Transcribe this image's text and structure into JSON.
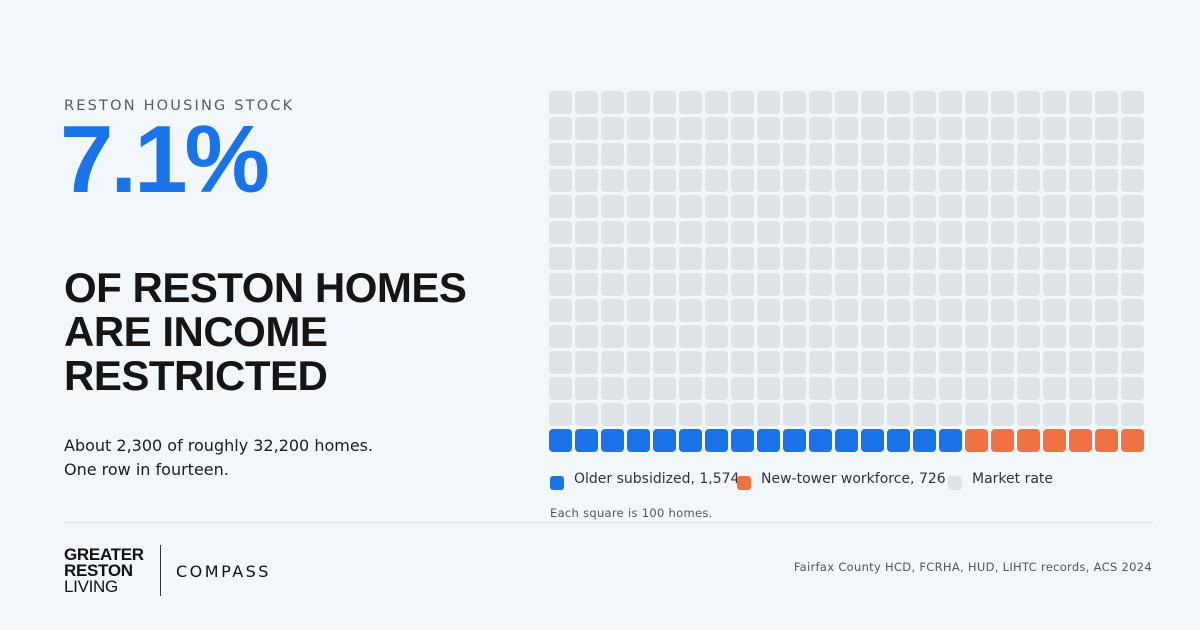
{
  "eyebrow": "RESTON HOUSING STOCK",
  "big_stat": "7.1%",
  "headline": [
    "OF RESTON HOMES",
    "ARE INCOME",
    "RESTRICTED"
  ],
  "subtext": [
    "About 2,300 of roughly 32,200 homes.",
    "One row in fourteen."
  ],
  "note": "Each square is 100 homes.",
  "source": "Fairfax County HCD, FCRHA, HUD, LIHTC records, ACS 2024",
  "brand": {
    "logo_lines": [
      "GREATER",
      "RESTON",
      "LIVING"
    ],
    "partner": "COMPASS"
  },
  "legend": [
    {
      "label": "Older subsidized, 1,574",
      "color": "#1a73e8"
    },
    {
      "label": "New-tower workforce, 726",
      "color": "#f07242"
    },
    {
      "label": "Market rate",
      "color": "#dfe3e7"
    }
  ],
  "chart_data": {
    "type": "waffle",
    "rows": 14,
    "cols": 23,
    "unit_homes_per_square": 100,
    "series": [
      {
        "name": "Older subsidized",
        "squares": 16,
        "color": "#1a73e8"
      },
      {
        "name": "New-tower workforce",
        "squares": 7,
        "color": "#f07242"
      },
      {
        "name": "Market rate",
        "squares": 299,
        "color": "#dfe3e7"
      }
    ]
  }
}
